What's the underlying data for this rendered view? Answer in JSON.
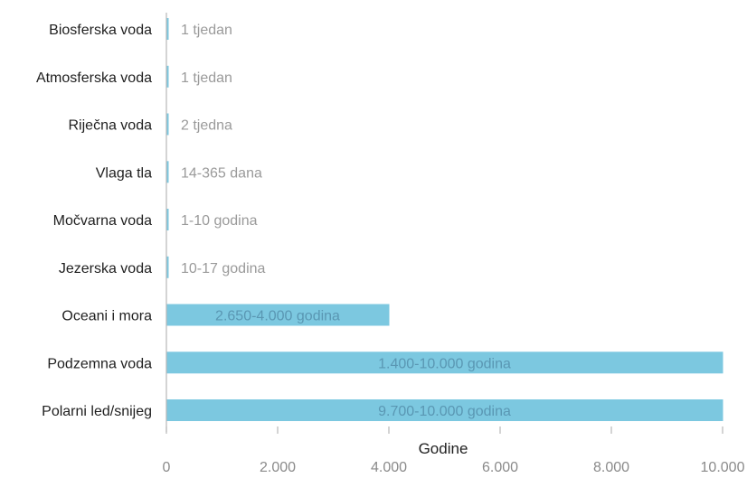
{
  "chart_data": {
    "type": "bar",
    "orientation": "horizontal",
    "title": "",
    "xlabel": "Godine",
    "ylabel": "",
    "xlim": [
      0,
      10000
    ],
    "x_ticks": [
      0,
      2000,
      4000,
      6000,
      8000,
      10000
    ],
    "x_tick_labels": [
      "0",
      "2.000",
      "4.000",
      "6.000",
      "8.000",
      "10.000"
    ],
    "grid": false,
    "legend": "none",
    "colors": {
      "bar": "#7cc8e0",
      "axis": "#9a9a9a",
      "category_text": "#1f1f1f",
      "data_label_outside": "#9a9a9a",
      "data_label_inside": "#5a97b3",
      "tick_text": "#8a8a8a"
    },
    "categories": [
      "Biosferska voda",
      "Atmosferska voda",
      "Riječna voda",
      "Vlaga tla",
      "Močvarna voda",
      "Jezerska voda",
      "Oceani i mora",
      "Podzemna voda",
      "Polarni led/snijeg"
    ],
    "values": [
      0.02,
      0.02,
      0.04,
      1,
      10,
      17,
      4000,
      10000,
      10000
    ],
    "data_labels": [
      "1 tjedan",
      "1 tjedan",
      "2 tjedna",
      "14-365 dana",
      "1-10 godina",
      "10-17 godina",
      "2.650-4.000 godina",
      "1.400-10.000 godina",
      "9.700-10.000 godina"
    ]
  }
}
